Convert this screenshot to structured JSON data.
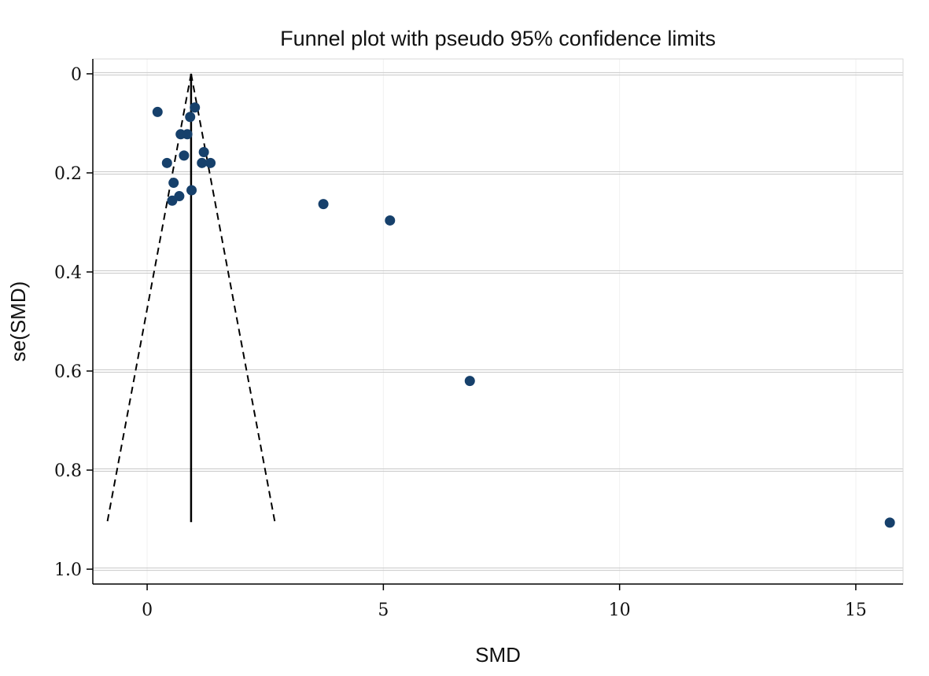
{
  "chart_data": {
    "type": "scatter",
    "title": "Funnel plot with pseudo 95% confidence limits",
    "xlabel": "SMD",
    "ylabel": "se(SMD)",
    "xlim": [
      -1.15,
      16.0
    ],
    "ylim": [
      1.03,
      -0.03
    ],
    "y_reversed": true,
    "xticks": [
      0,
      5,
      10,
      15
    ],
    "xtick_labels": [
      "0",
      "5",
      "10",
      "15"
    ],
    "yticks": [
      0,
      0.2,
      0.4,
      0.6,
      0.8,
      1.0
    ],
    "ytick_labels": [
      "0",
      "0.2",
      "0.4",
      "0.6",
      "0.8",
      "1.0"
    ],
    "grid": true,
    "legend": "none",
    "pooled_estimate": 0.93,
    "funnel_max_se": 0.905,
    "points": [
      {
        "x": 0.22,
        "y": 0.077
      },
      {
        "x": 1.01,
        "y": 0.068
      },
      {
        "x": 0.91,
        "y": 0.087
      },
      {
        "x": 0.71,
        "y": 0.122
      },
      {
        "x": 0.85,
        "y": 0.122
      },
      {
        "x": 1.2,
        "y": 0.158
      },
      {
        "x": 0.78,
        "y": 0.165
      },
      {
        "x": 0.42,
        "y": 0.18
      },
      {
        "x": 1.16,
        "y": 0.18
      },
      {
        "x": 1.34,
        "y": 0.18
      },
      {
        "x": 0.56,
        "y": 0.22
      },
      {
        "x": 0.94,
        "y": 0.235
      },
      {
        "x": 0.68,
        "y": 0.247
      },
      {
        "x": 0.53,
        "y": 0.256
      },
      {
        "x": 3.73,
        "y": 0.263
      },
      {
        "x": 5.14,
        "y": 0.296
      },
      {
        "x": 6.83,
        "y": 0.62
      },
      {
        "x": 15.72,
        "y": 0.906
      }
    ],
    "colors": {
      "points": "#16406b",
      "lines": "#000000",
      "grid": "#c8c8c8",
      "panel": "#ffffff"
    }
  }
}
